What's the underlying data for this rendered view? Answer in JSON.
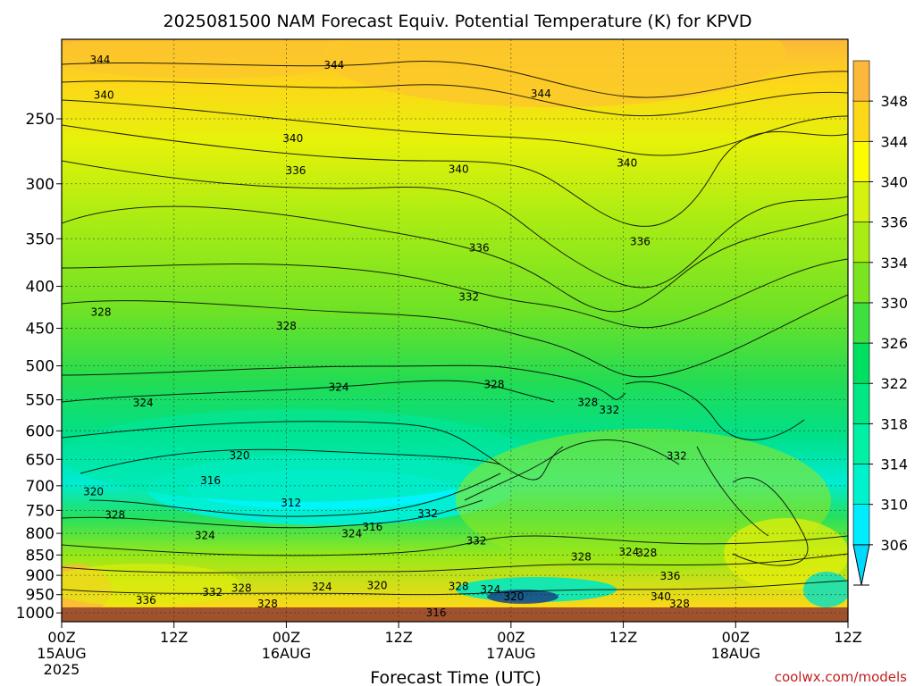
{
  "chart_data": {
    "type": "heatmap",
    "title": "2025081500 NAM Forecast Equiv. Potential Temperature (K) for KPVD",
    "xlabel": "Forecast Time (UTC)",
    "ylabel": "",
    "x_ticks": [
      {
        "hours": 0,
        "label": "00Z",
        "date": "15AUG",
        "year": "2025"
      },
      {
        "hours": 12,
        "label": "12Z"
      },
      {
        "hours": 24,
        "label": "00Z",
        "date": "16AUG"
      },
      {
        "hours": 36,
        "label": "12Z"
      },
      {
        "hours": 48,
        "label": "00Z",
        "date": "17AUG"
      },
      {
        "hours": 60,
        "label": "12Z"
      },
      {
        "hours": 72,
        "label": "00Z",
        "date": "18AUG"
      },
      {
        "hours": 84,
        "label": "12Z"
      }
    ],
    "xlim": [
      0,
      84
    ],
    "y_ticks": [
      1000,
      950,
      900,
      850,
      800,
      750,
      700,
      650,
      600,
      550,
      500,
      450,
      400,
      350,
      300,
      250
    ],
    "ylim": [
      1025,
      200
    ],
    "y_scale": "log",
    "grid": true,
    "colorbar": {
      "levels": [
        306,
        310,
        314,
        318,
        322,
        326,
        330,
        334,
        336,
        340,
        344,
        348
      ],
      "colors": [
        "#00ecff",
        "#00f2cc",
        "#00f0a4",
        "#00e884",
        "#00e060",
        "#3ee040",
        "#7ae41e",
        "#a8ec14",
        "#d4f20e",
        "#fcfc00",
        "#fcd818",
        "#fcb83a"
      ],
      "position": "right"
    },
    "contour_labels": [
      {
        "hours": 4.1,
        "p": 212,
        "value": "344"
      },
      {
        "hours": 29.1,
        "p": 215,
        "value": "344"
      },
      {
        "hours": 51.2,
        "p": 233,
        "value": "344"
      },
      {
        "hours": 4.5,
        "p": 234,
        "value": "340"
      },
      {
        "hours": 24.7,
        "p": 264,
        "value": "340"
      },
      {
        "hours": 42.4,
        "p": 288,
        "value": "340"
      },
      {
        "hours": 60.4,
        "p": 283,
        "value": "340"
      },
      {
        "hours": 25.0,
        "p": 289,
        "value": "336"
      },
      {
        "hours": 44.6,
        "p": 359,
        "value": "336"
      },
      {
        "hours": 61.8,
        "p": 353,
        "value": "336"
      },
      {
        "hours": 4.2,
        "p": 430,
        "value": "328"
      },
      {
        "hours": 24.0,
        "p": 447,
        "value": "328"
      },
      {
        "hours": 43.5,
        "p": 412,
        "value": "332"
      },
      {
        "hours": 46.2,
        "p": 527,
        "value": "328"
      },
      {
        "hours": 56.2,
        "p": 554,
        "value": "328"
      },
      {
        "hours": 58.5,
        "p": 566,
        "value": "332"
      },
      {
        "hours": 8.7,
        "p": 555,
        "value": "324"
      },
      {
        "hours": 29.6,
        "p": 531,
        "value": "324"
      },
      {
        "hours": 19.0,
        "p": 643,
        "value": "320"
      },
      {
        "hours": 3.4,
        "p": 712,
        "value": "320"
      },
      {
        "hours": 15.9,
        "p": 690,
        "value": "316"
      },
      {
        "hours": 24.5,
        "p": 734,
        "value": "312"
      },
      {
        "hours": 5.7,
        "p": 760,
        "value": "328"
      },
      {
        "hours": 15.3,
        "p": 805,
        "value": "324"
      },
      {
        "hours": 31.0,
        "p": 801,
        "value": "324"
      },
      {
        "hours": 33.2,
        "p": 786,
        "value": "316"
      },
      {
        "hours": 39.1,
        "p": 757,
        "value": "332"
      },
      {
        "hours": 44.3,
        "p": 817,
        "value": "332"
      },
      {
        "hours": 65.7,
        "p": 644,
        "value": "332"
      },
      {
        "hours": 55.5,
        "p": 855,
        "value": "328"
      },
      {
        "hours": 60.6,
        "p": 843,
        "value": "324"
      },
      {
        "hours": 62.5,
        "p": 845,
        "value": "328"
      },
      {
        "hours": 19.2,
        "p": 933,
        "value": "328"
      },
      {
        "hours": 16.1,
        "p": 944,
        "value": "332"
      },
      {
        "hours": 27.8,
        "p": 930,
        "value": "324"
      },
      {
        "hours": 33.7,
        "p": 926,
        "value": "320"
      },
      {
        "hours": 42.4,
        "p": 928,
        "value": "328"
      },
      {
        "hours": 45.8,
        "p": 937,
        "value": "324"
      },
      {
        "hours": 48.3,
        "p": 955,
        "value": "320"
      },
      {
        "hours": 9.0,
        "p": 965,
        "value": "336"
      },
      {
        "hours": 22.0,
        "p": 975,
        "value": "328"
      },
      {
        "hours": 40.0,
        "p": 1000,
        "value": "316"
      },
      {
        "hours": 64.0,
        "p": 955,
        "value": "340"
      },
      {
        "hours": 66.0,
        "p": 975,
        "value": "328"
      },
      {
        "hours": 65.0,
        "p": 902,
        "value": "336"
      }
    ]
  },
  "credit": "coolwx.com/models"
}
